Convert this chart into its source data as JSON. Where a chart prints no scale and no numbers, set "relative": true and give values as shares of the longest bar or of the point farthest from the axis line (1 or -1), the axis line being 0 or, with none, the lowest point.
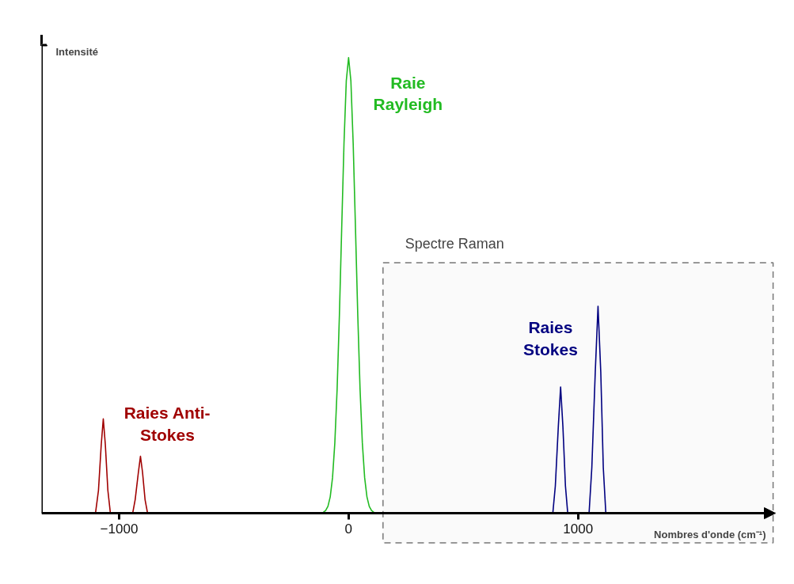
{
  "chart_data": {
    "type": "line",
    "relative": true,
    "xlabel": "Nombres d'onde (cm⁻¹)",
    "ylabel": "Intensité",
    "xlim": [
      -1338,
      1860
    ],
    "xticks": [
      -1000,
      0,
      1000
    ],
    "grid": false,
    "legend": false,
    "marker": "none",
    "line_style": "solid",
    "series": [
      {
        "name": "Raies Anti-Stokes",
        "color": "#a00000",
        "x": [
          -1103,
          -1090,
          -1078,
          -1069,
          -1060,
          -1049,
          -1038,
          -990,
          -941,
          -930,
          -916,
          -907,
          -898,
          -887,
          -876
        ],
        "values": [
          0,
          0.05,
          0.15,
          0.207,
          0.15,
          0.05,
          0,
          null,
          0,
          0.03,
          0.09,
          0.125,
          0.09,
          0.03,
          0
        ]
      },
      {
        "name": "Raie Rayleigh",
        "color": "#22bb22",
        "x": [
          -120,
          -110,
          -100,
          -90,
          -80,
          -70,
          -60,
          -50,
          -40,
          -30,
          -20,
          -10,
          0,
          10,
          20,
          30,
          40,
          50,
          60,
          70,
          80,
          90,
          100,
          110,
          120
        ],
        "values": [
          0,
          0.002,
          0.006,
          0.015,
          0.036,
          0.078,
          0.154,
          0.272,
          0.435,
          0.626,
          0.812,
          0.949,
          1,
          0.949,
          0.812,
          0.626,
          0.435,
          0.272,
          0.154,
          0.078,
          0.036,
          0.015,
          0.006,
          0.002,
          0
        ]
      },
      {
        "name": "Raies Stokes",
        "color": "#000080",
        "x": [
          890,
          901,
          914,
          924,
          934,
          945,
          955,
          1000,
          1048,
          1060,
          1075,
          1087,
          1099,
          1110,
          1121
        ],
        "values": [
          0,
          0.06,
          0.19,
          0.277,
          0.19,
          0.06,
          0,
          null,
          0,
          0.1,
          0.31,
          0.454,
          0.31,
          0.1,
          0
        ]
      }
    ],
    "bands": [
      {
        "axis": "x",
        "from": 150,
        "to": 1850,
        "label": "Spectre Raman",
        "color": "#777777"
      }
    ]
  }
}
